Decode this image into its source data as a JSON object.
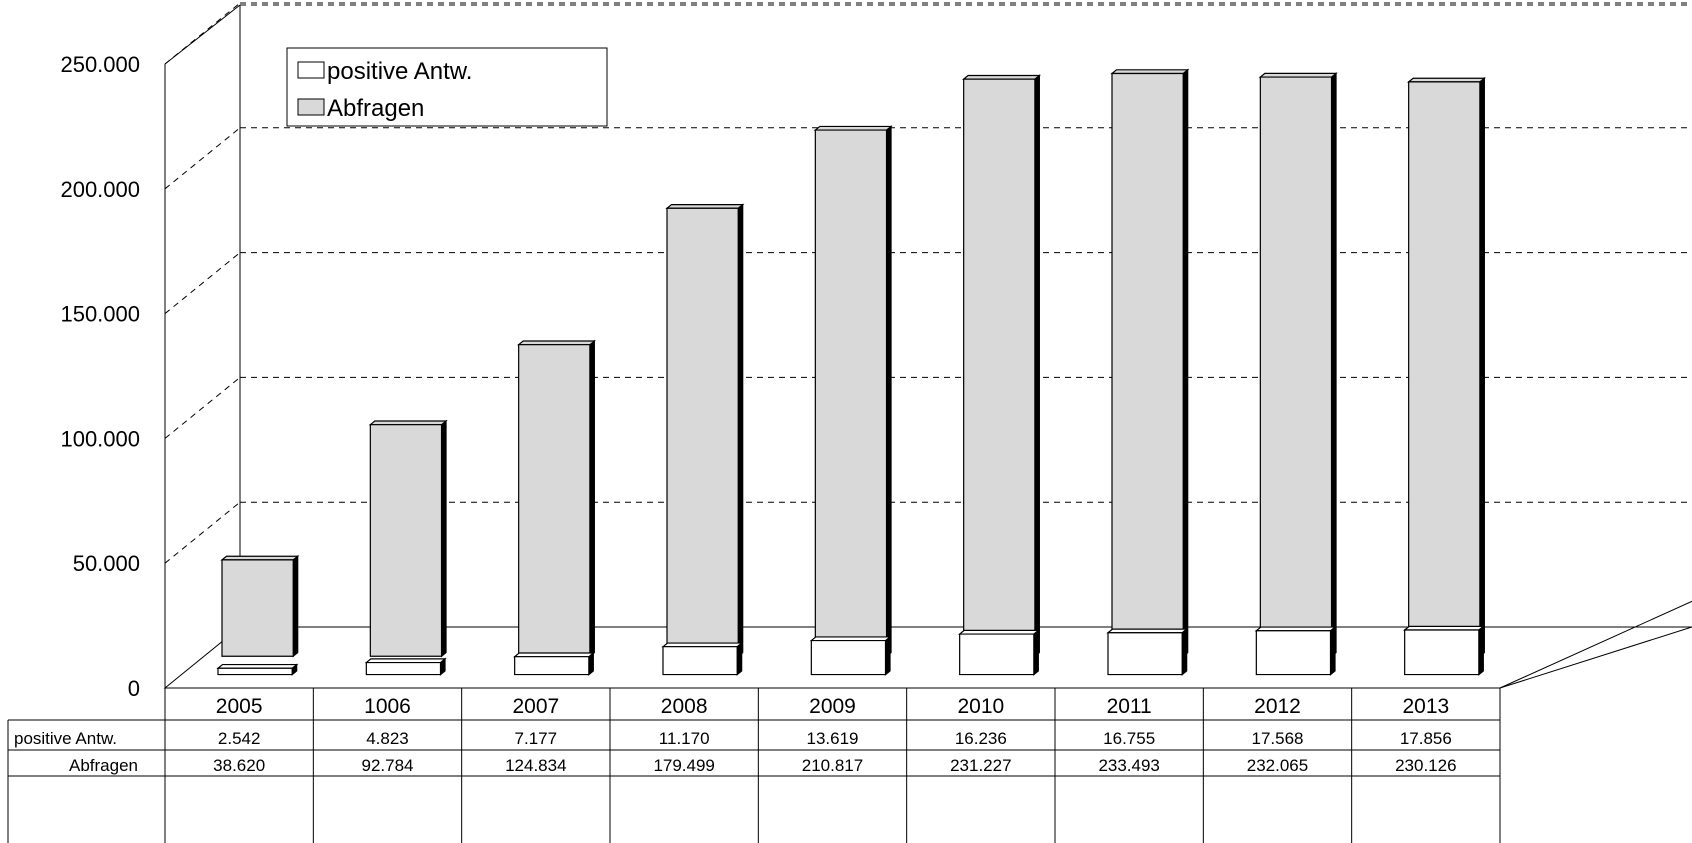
{
  "chart_data": {
    "type": "bar",
    "categories": [
      "2005",
      "1006",
      "2007",
      "2008",
      "2009",
      "2010",
      "2011",
      "2012",
      "2013"
    ],
    "series": [
      {
        "name": "positive Antw.",
        "values": [
          2542,
          4823,
          7177,
          11170,
          13619,
          16236,
          16755,
          17568,
          17856
        ],
        "color": "#ffffff"
      },
      {
        "name": "Abfragen",
        "values": [
          38620,
          92784,
          124834,
          179499,
          210817,
          231227,
          233493,
          232065,
          230126
        ],
        "color": "#d9d9d9"
      }
    ],
    "y_ticks": [
      "0",
      "50.000",
      "100.000",
      "150.000",
      "200.000",
      "250.000"
    ],
    "ylim": [
      0,
      250000
    ],
    "data_table": {
      "rows": [
        {
          "label": "positive Antw.",
          "cells": [
            "2.542",
            "4.823",
            "7.177",
            "11.170",
            "13.619",
            "16.236",
            "16.755",
            "17.568",
            "17.856"
          ]
        },
        {
          "label": "Abfragen",
          "cells": [
            "38.620",
            "92.784",
            "124.834",
            "179.499",
            "210.817",
            "231.227",
            "233.493",
            "232.065",
            "230.126"
          ]
        }
      ]
    },
    "legend": {
      "placement": "top-left",
      "entries": [
        "positive Antw.",
        "Abfragen"
      ]
    },
    "grid": true,
    "three_d": true
  }
}
